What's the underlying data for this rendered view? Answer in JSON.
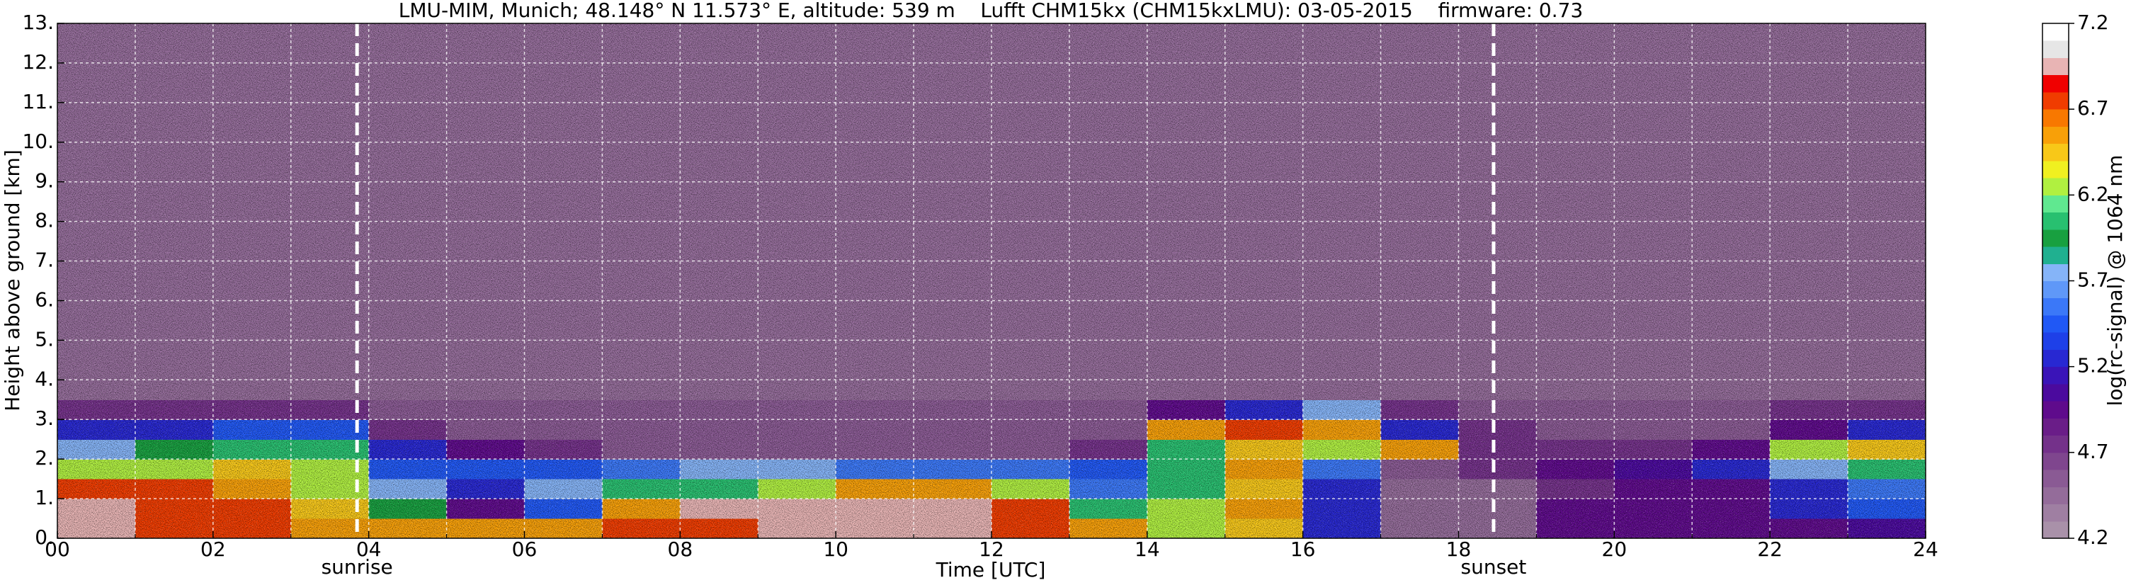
{
  "chart_data": {
    "type": "heatmap",
    "title": "LMU-MIM, Munich; 48.148° N 11.573° E, altitude: 539 m    Lufft CHM15kx (CHM15kxLMU): 03-05-2015    firmware: 0.73",
    "xlabel": "Time [UTC]",
    "ylabel": "Height above ground [km]",
    "xlim": [
      0,
      24
    ],
    "ylim": [
      0,
      13
    ],
    "xticks": [
      {
        "value": 0,
        "label": "00"
      },
      {
        "value": 2,
        "label": "02"
      },
      {
        "value": 4,
        "label": "04"
      },
      {
        "value": 6,
        "label": "06"
      },
      {
        "value": 8,
        "label": "08"
      },
      {
        "value": 10,
        "label": "10"
      },
      {
        "value": 12,
        "label": "12"
      },
      {
        "value": 14,
        "label": "14"
      },
      {
        "value": 16,
        "label": "16"
      },
      {
        "value": 18,
        "label": "18"
      },
      {
        "value": 20,
        "label": "20"
      },
      {
        "value": 22,
        "label": "22"
      },
      {
        "value": 24,
        "label": "24"
      }
    ],
    "x_minor_ticks": [
      1,
      3,
      5,
      7,
      9,
      11,
      13,
      15,
      17,
      19,
      21,
      23
    ],
    "yticks": [
      {
        "value": 0,
        "label": "0."
      },
      {
        "value": 1,
        "label": "1."
      },
      {
        "value": 2,
        "label": "2."
      },
      {
        "value": 3,
        "label": "3."
      },
      {
        "value": 4,
        "label": "4."
      },
      {
        "value": 5,
        "label": "5."
      },
      {
        "value": 6,
        "label": "6."
      },
      {
        "value": 7,
        "label": "7."
      },
      {
        "value": 8,
        "label": "8."
      },
      {
        "value": 9,
        "label": "9."
      },
      {
        "value": 10,
        "label": "10."
      },
      {
        "value": 11,
        "label": "11."
      },
      {
        "value": 12,
        "label": "12."
      },
      {
        "value": 13,
        "label": "13."
      }
    ],
    "grid": true,
    "xbins": [
      0,
      1,
      2,
      3,
      4,
      5,
      6,
      7,
      8,
      9,
      10,
      11,
      12,
      13,
      14,
      15,
      16,
      17,
      18,
      19,
      20,
      21,
      22,
      23,
      24
    ],
    "ybins": [
      0,
      0.5,
      1,
      1.5,
      2,
      2.5,
      3,
      3.5,
      13
    ],
    "z": [
      [
        6.9,
        6.8,
        6.7,
        6.6,
        6.5,
        6.6,
        6.6,
        6.7,
        6.8,
        6.9,
        6.9,
        6.9,
        6.7,
        6.6,
        6.3,
        6.4,
        5.3,
        4.4,
        4.5,
        4.9,
        4.9,
        4.9,
        5.0,
        5.1
      ],
      [
        7.0,
        6.8,
        6.7,
        6.4,
        5.9,
        5.0,
        5.4,
        6.6,
        6.9,
        7.0,
        6.9,
        6.9,
        6.7,
        6.1,
        6.2,
        6.5,
        5.2,
        4.4,
        4.5,
        4.9,
        4.9,
        5.0,
        5.2,
        5.4
      ],
      [
        6.8,
        6.7,
        6.6,
        6.3,
        5.7,
        5.2,
        5.7,
        6.0,
        6.1,
        6.3,
        6.6,
        6.5,
        6.2,
        5.6,
        6.1,
        6.4,
        5.3,
        4.4,
        4.5,
        4.8,
        4.9,
        4.9,
        5.3,
        5.6
      ],
      [
        6.3,
        6.2,
        6.4,
        6.2,
        5.5,
        5.5,
        5.5,
        5.6,
        5.7,
        5.7,
        5.6,
        5.6,
        5.6,
        5.5,
        6.0,
        6.5,
        5.6,
        4.6,
        4.7,
        5.0,
        5.1,
        5.2,
        5.8,
        6.0
      ],
      [
        5.8,
        5.9,
        6.1,
        6.0,
        5.2,
        4.9,
        4.7,
        4.6,
        4.6,
        4.6,
        4.6,
        4.6,
        4.6,
        4.7,
        6.1,
        6.4,
        6.3,
        6.5,
        4.8,
        4.7,
        4.8,
        4.9,
        6.2,
        6.4
      ],
      [
        5.3,
        5.2,
        5.5,
        5.4,
        4.8,
        4.6,
        4.6,
        4.6,
        4.6,
        4.6,
        4.6,
        4.6,
        4.6,
        4.6,
        6.6,
        6.7,
        6.6,
        5.3,
        4.7,
        4.6,
        4.6,
        4.6,
        4.9,
        5.2
      ],
      [
        4.7,
        4.7,
        4.8,
        4.7,
        4.6,
        4.6,
        4.6,
        4.6,
        4.6,
        4.6,
        4.6,
        4.6,
        4.6,
        4.6,
        5.0,
        5.3,
        5.8,
        4.8,
        4.6,
        4.6,
        4.6,
        4.6,
        4.7,
        4.8
      ],
      [
        4.5,
        4.5,
        4.5,
        4.5,
        4.5,
        4.5,
        4.5,
        4.5,
        4.5,
        4.5,
        4.5,
        4.5,
        4.5,
        4.5,
        4.5,
        4.5,
        4.5,
        4.5,
        4.5,
        4.5,
        4.5,
        4.5,
        4.5,
        4.5
      ]
    ],
    "annotations": [
      {
        "text": "sunrise",
        "x": 3.85
      },
      {
        "text": "sunset",
        "x": 18.45
      }
    ],
    "colorbar": {
      "label": "log(rc-signal) @ 1064 nm",
      "lim": [
        4.2,
        7.2
      ],
      "ticks": [
        4.2,
        4.7,
        5.2,
        5.7,
        6.2,
        6.7,
        7.2
      ],
      "colors": [
        "#a991a9",
        "#9f7fa2",
        "#946c9a",
        "#8a5a94",
        "#7f468e",
        "#74318a",
        "#6a1d88",
        "#5f0b8c",
        "#4b0a9e",
        "#3a14b8",
        "#2828d2",
        "#1e40e8",
        "#2058f5",
        "#3b78f8",
        "#5f98f8",
        "#85b4f8",
        "#20b090",
        "#18a040",
        "#28c070",
        "#60e890",
        "#b0f040",
        "#f0f020",
        "#f8c818",
        "#f8a008",
        "#f87800",
        "#f03c00",
        "#f00000",
        "#e8b4b4",
        "#e6e6e6",
        "#ffffff"
      ]
    }
  }
}
